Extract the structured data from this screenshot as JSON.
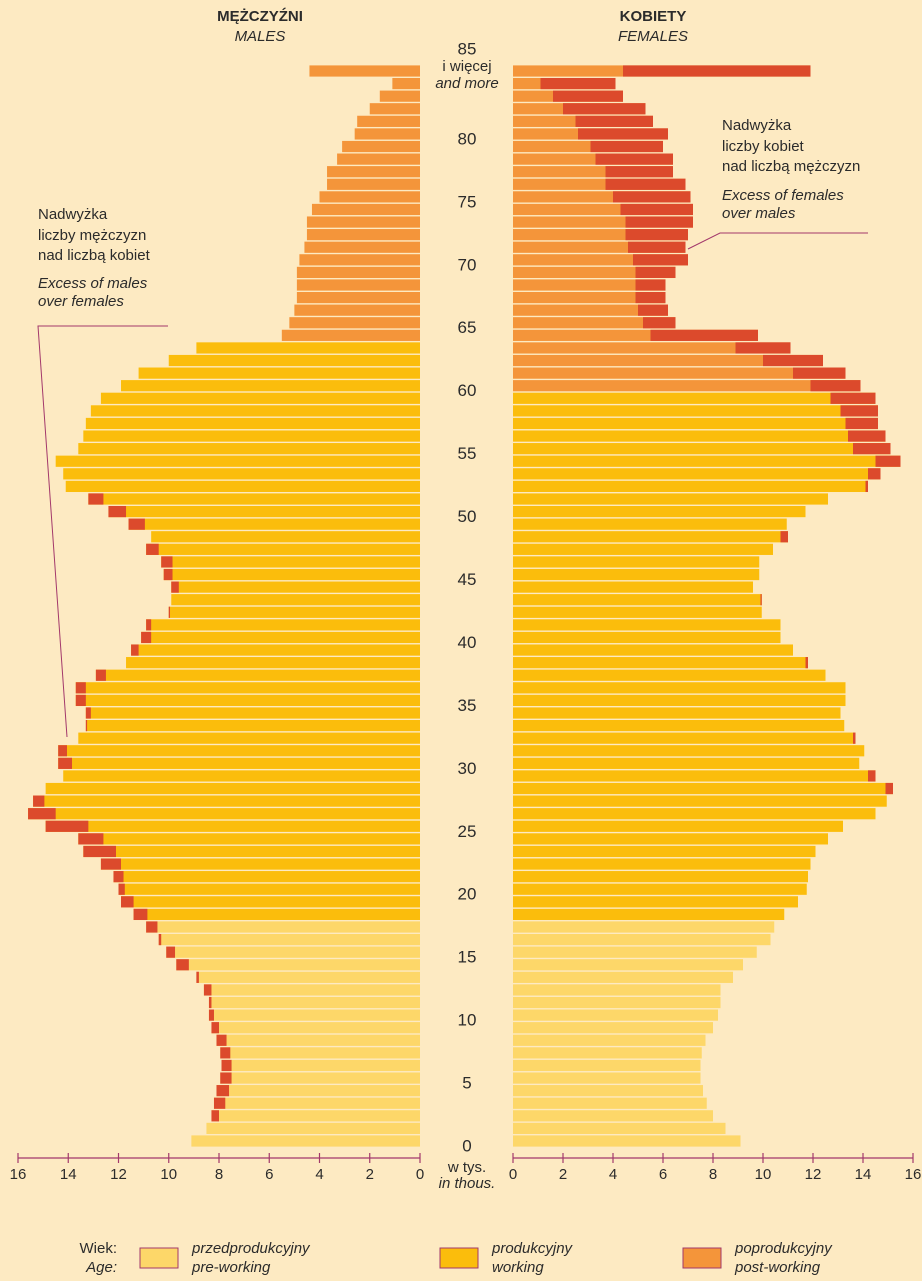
{
  "chart_data": {
    "type": "population_pyramid",
    "left_title": "MĘŻCZYŹNI",
    "left_subtitle": "MALES",
    "right_title": "KOBIETY",
    "right_subtitle": "FEMALES",
    "categories": [
      "0",
      null,
      null,
      null,
      null,
      "5",
      null,
      null,
      null,
      null,
      "10",
      null,
      null,
      null,
      null,
      "15",
      null,
      null,
      null,
      null,
      "20",
      null,
      null,
      null,
      null,
      "25",
      null,
      null,
      null,
      null,
      "30",
      null,
      null,
      null,
      null,
      "35",
      null,
      null,
      null,
      null,
      "40",
      null,
      null,
      null,
      null,
      "45",
      null,
      null,
      null,
      null,
      "50",
      null,
      null,
      null,
      null,
      "55",
      null,
      null,
      null,
      null,
      "60",
      null,
      null,
      null,
      null,
      "65",
      null,
      null,
      null,
      null,
      "70",
      null,
      null,
      null,
      null,
      "75",
      null,
      null,
      null,
      null,
      "80",
      null,
      null,
      null,
      null,
      "85"
    ],
    "category_notes": [
      "i więcej",
      "and more"
    ],
    "series": [
      {
        "side": "left",
        "values": [
          9.1,
          8.5,
          8.3,
          8.2,
          8.1,
          7.95,
          7.9,
          7.95,
          8.1,
          8.3,
          8.4,
          8.4,
          8.6,
          8.9,
          9.7,
          10.1,
          10.4,
          10.9,
          11.4,
          11.9,
          12.0,
          12.2,
          12.7,
          13.4,
          13.6,
          14.9,
          15.6,
          15.4,
          14.9,
          14.2,
          14.4,
          14.4,
          13.6,
          13.3,
          13.3,
          13.7,
          13.7,
          12.9,
          11.7,
          11.5,
          11.1,
          10.9,
          10.0,
          9.9,
          9.9,
          10.2,
          10.3,
          10.9,
          10.7,
          11.6,
          12.4,
          13.2,
          14.1,
          14.2,
          14.5,
          13.6,
          13.4,
          13.3,
          13.1,
          12.7,
          11.9,
          11.2,
          10.0,
          8.9,
          5.5,
          5.2,
          5.0,
          4.9,
          4.9,
          4.9,
          4.8,
          4.6,
          4.5,
          4.5,
          4.3,
          4.0,
          3.7,
          3.7,
          3.3,
          3.1,
          2.6,
          2.5,
          2.0,
          1.6,
          1.1,
          4.4
        ],
        "groups_from": [
          0,
          18,
          64
        ]
      },
      {
        "side": "right",
        "values": [
          9.1,
          8.5,
          8.0,
          7.75,
          7.6,
          7.5,
          7.5,
          7.55,
          7.7,
          8.0,
          8.2,
          8.3,
          8.3,
          8.8,
          9.2,
          9.75,
          10.3,
          10.45,
          10.85,
          11.4,
          11.75,
          11.8,
          11.9,
          12.1,
          12.6,
          13.2,
          14.5,
          14.95,
          15.2,
          14.5,
          13.85,
          14.05,
          13.7,
          13.25,
          13.1,
          13.3,
          13.3,
          12.5,
          11.8,
          11.2,
          10.7,
          10.7,
          9.95,
          9.95,
          9.6,
          9.85,
          9.85,
          10.4,
          11.0,
          10.95,
          11.7,
          12.6,
          14.2,
          14.7,
          15.5,
          15.1,
          14.9,
          14.6,
          14.6,
          14.5,
          13.9,
          13.3,
          12.4,
          11.1,
          9.8,
          6.5,
          6.2,
          6.1,
          6.1,
          6.5,
          7.0,
          6.9,
          7.0,
          7.2,
          7.2,
          7.1,
          6.9,
          6.4,
          6.4,
          6.0,
          6.2,
          5.6,
          5.3,
          4.4,
          4.1,
          11.9
        ],
        "groups_from": [
          0,
          18,
          60
        ]
      }
    ],
    "excess_color": "#dc4a2c",
    "xlim": [
      0,
      16
    ],
    "xticks": [
      0,
      2,
      4,
      6,
      8,
      10,
      12,
      14,
      16
    ],
    "x_label": [
      "w tys.",
      "in thous."
    ],
    "legend": {
      "title": [
        "Wiek:",
        "Age:"
      ],
      "items": [
        {
          "name": "przedprodukcyjny",
          "name_en": "pre-working",
          "color": "#fdd769"
        },
        {
          "name": "produkcyjny",
          "name_en": "working",
          "color": "#fbbd0c"
        },
        {
          "name": "poprodukcyjny",
          "name_en": "post-working",
          "color": "#f4953a"
        }
      ]
    },
    "annotations": [
      {
        "lines": [
          "Nadwyżka",
          "liczby mężczyzn",
          "nad liczbą kobiet"
        ],
        "lines_en": [
          "Excess of males",
          "over females"
        ]
      },
      {
        "lines": [
          "Nadwyżka",
          "liczby kobiet",
          "nad liczbą mężczyzn"
        ],
        "lines_en": [
          "Excess of females",
          "over males"
        ]
      }
    ]
  }
}
